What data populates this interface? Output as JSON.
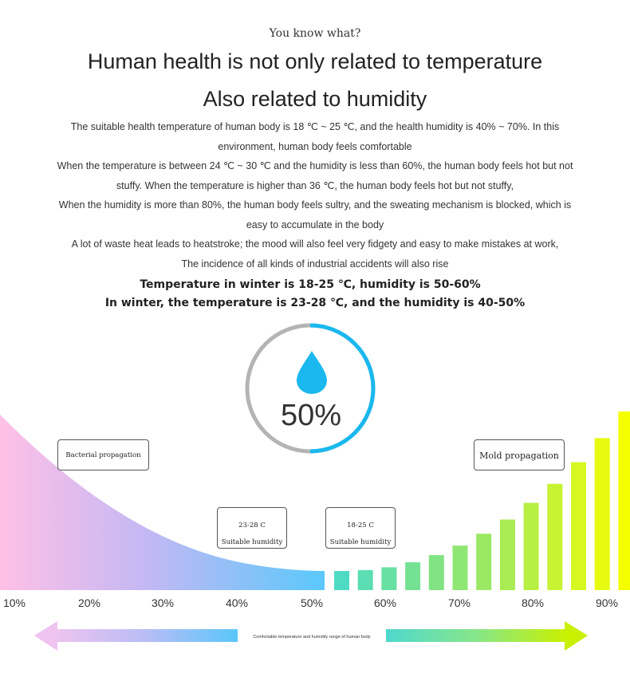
{
  "intro": "You know what?",
  "headline_1": "Human health is not only related to temperature",
  "headline_2": "Also related to humidity",
  "paragraphs": [
    "The suitable health temperature of human body is 18 ℃ ~ 25 ℃, and the health humidity is 40% ~ 70%. In this environment, human body feels comfortable",
    "When the temperature is between 24 ℃ ~ 30 ℃ and the humidity is less than 60%, the human body feels hot but not stuffy. When the temperature is higher than 36 ℃, the human body feels hot but not stuffy,",
    "When the humidity is more than 80%, the human body feels sultry, and the sweating mechanism is blocked, which is easy to accumulate in the body",
    "A lot of waste heat leads to heatstroke; the mood will also feel very fidgety and easy to make mistakes at work,",
    "The incidence of all kinds of industrial accidents will also rise"
  ],
  "summary_1": "Temperature in winter is 18-25 ℃, humidity is 50-60%",
  "summary_2": "In winter, the temperature is 23-28 ℃, and the humidity is 40-50%",
  "gauge": {
    "value_text": "50%",
    "value_fraction": 0.5,
    "fill_color": "#1ab8ee",
    "track_color": "#b4b4b4",
    "icon": "water-drop-icon"
  },
  "labels": {
    "left": "Bacterial propagation",
    "right": "Mold propagation",
    "card_a": {
      "line1": "23-28 C",
      "line2": "Suitable humidity"
    },
    "card_b": {
      "line1": "18-25 C",
      "line2": "Suitable humidity"
    }
  },
  "axis_ticks": [
    "10%",
    "20%",
    "30%",
    "40%",
    "50%",
    "60%",
    "70%",
    "80%",
    "90%"
  ],
  "arrow_caption": "Comfortable temperature and humidity range of human body",
  "colors": {
    "pink": "#ffc0e6",
    "lavender": "#c4b8f4",
    "sky": "#5ac8fb",
    "teal": "#4fdbc3",
    "lime": "#a2e95a",
    "yellow": "#f6ff00"
  }
}
